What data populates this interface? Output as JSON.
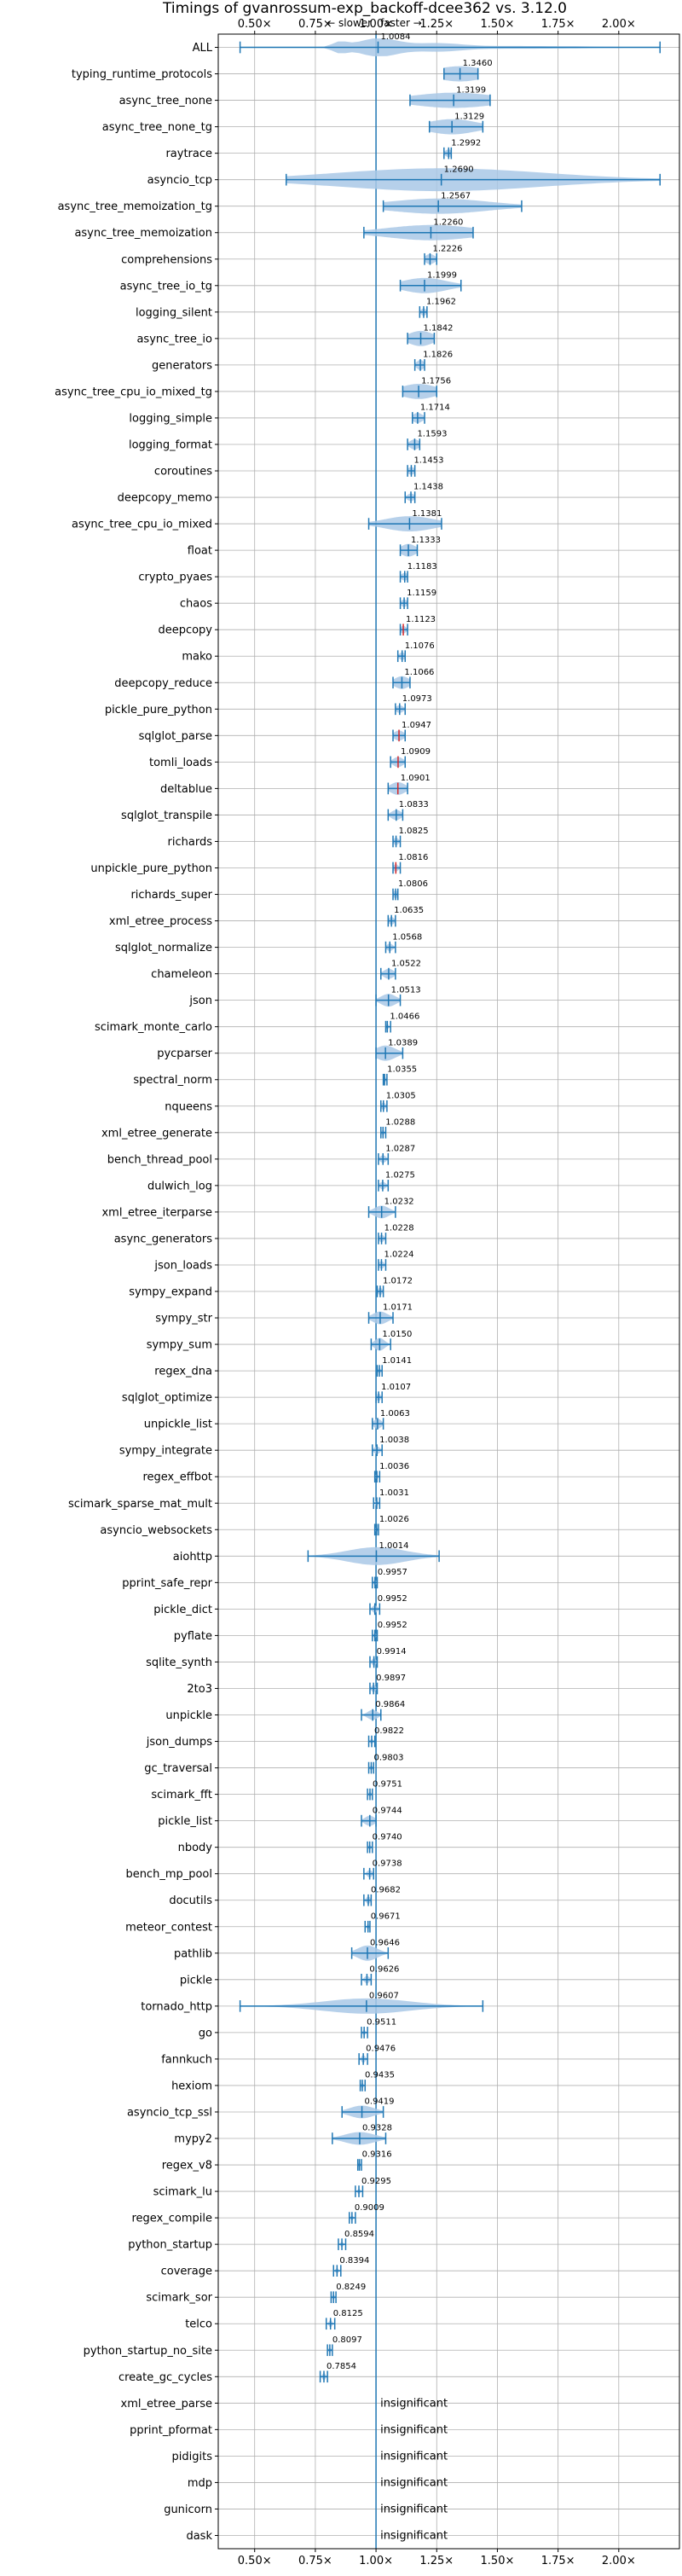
{
  "chart_data": {
    "type": "violin",
    "title": "Timings of gvanrossum-exp_backoff-dcee362 vs. 3.12.0",
    "annotation_slower": "← slower",
    "annotation_faster": "faster →",
    "reference_line": 1.0,
    "xlim": [
      0.35,
      2.25
    ],
    "xticks": [
      0.5,
      0.75,
      1.0,
      1.25,
      1.5,
      1.75,
      2.0
    ],
    "xtick_labels": [
      "0.50×",
      "0.75×",
      "1.00×",
      "1.25×",
      "1.50×",
      "1.75×",
      "2.00×"
    ],
    "grid": true,
    "insignificant_label": "insignificant",
    "colors": {
      "violin": "#a9c8e6",
      "line": "#1f77b4",
      "grid": "#b0b0b0",
      "median_red": "#d62728"
    },
    "benchmarks": [
      {
        "name": "ALL",
        "value": 1.0084,
        "label": "1.0084",
        "min": 0.44,
        "max": 2.17,
        "spread": 0.2,
        "width": 0.7,
        "multi": true
      },
      {
        "name": "typing_runtime_protocols",
        "value": 1.346,
        "label": "1.3460",
        "min": 1.28,
        "max": 1.42,
        "spread": 0.1,
        "width": 0.6
      },
      {
        "name": "async_tree_none",
        "value": 1.3199,
        "label": "1.3199",
        "min": 1.14,
        "max": 1.47,
        "spread": 0.17,
        "width": 0.6
      },
      {
        "name": "async_tree_none_tg",
        "value": 1.3129,
        "label": "1.3129",
        "min": 1.22,
        "max": 1.44,
        "spread": 0.1,
        "width": 0.6
      },
      {
        "name": "raytrace",
        "value": 1.2992,
        "label": "1.2992",
        "min": 1.28,
        "max": 1.31,
        "spread": 0.015,
        "width": 0.3
      },
      {
        "name": "asyncio_tcp",
        "value": 1.269,
        "label": "1.2690",
        "min": 0.63,
        "max": 2.17,
        "spread": 0.42,
        "width": 0.9
      },
      {
        "name": "async_tree_memoization_tg",
        "value": 1.2567,
        "label": "1.2567",
        "min": 1.03,
        "max": 1.6,
        "spread": 0.2,
        "width": 0.6
      },
      {
        "name": "async_tree_memoization",
        "value": 1.226,
        "label": "1.2260",
        "min": 0.95,
        "max": 1.4,
        "spread": 0.18,
        "width": 0.6
      },
      {
        "name": "comprehensions",
        "value": 1.2226,
        "label": "1.2226",
        "min": 1.2,
        "max": 1.25,
        "spread": 0.02,
        "width": 0.4
      },
      {
        "name": "async_tree_io_tg",
        "value": 1.1999,
        "label": "1.1999",
        "min": 1.1,
        "max": 1.35,
        "spread": 0.09,
        "width": 0.6
      },
      {
        "name": "logging_silent",
        "value": 1.1962,
        "label": "1.1962",
        "min": 1.18,
        "max": 1.21,
        "spread": 0.01,
        "width": 0.3
      },
      {
        "name": "async_tree_io",
        "value": 1.1842,
        "label": "1.1842",
        "min": 1.13,
        "max": 1.24,
        "spread": 0.05,
        "width": 0.6
      },
      {
        "name": "generators",
        "value": 1.1826,
        "label": "1.1826",
        "min": 1.16,
        "max": 1.2,
        "spread": 0.015,
        "width": 0.4
      },
      {
        "name": "async_tree_cpu_io_mixed_tg",
        "value": 1.1756,
        "label": "1.1756",
        "min": 1.11,
        "max": 1.25,
        "spread": 0.07,
        "width": 0.6
      },
      {
        "name": "logging_simple",
        "value": 1.1714,
        "label": "1.1714",
        "min": 1.15,
        "max": 1.2,
        "spread": 0.02,
        "width": 0.4
      },
      {
        "name": "logging_format",
        "value": 1.1593,
        "label": "1.1593",
        "min": 1.13,
        "max": 1.18,
        "spread": 0.02,
        "width": 0.4
      },
      {
        "name": "coroutines",
        "value": 1.1453,
        "label": "1.1453",
        "min": 1.13,
        "max": 1.16,
        "spread": 0.015,
        "width": 0.3
      },
      {
        "name": "deepcopy_memo",
        "value": 1.1438,
        "label": "1.1438",
        "min": 1.12,
        "max": 1.16,
        "spread": 0.015,
        "width": 0.3
      },
      {
        "name": "async_tree_cpu_io_mixed",
        "value": 1.1381,
        "label": "1.1381",
        "min": 0.97,
        "max": 1.27,
        "spread": 0.1,
        "width": 0.6
      },
      {
        "name": "float",
        "value": 1.1333,
        "label": "1.1333",
        "min": 1.1,
        "max": 1.17,
        "spread": 0.03,
        "width": 0.5
      },
      {
        "name": "crypto_pyaes",
        "value": 1.1183,
        "label": "1.1183",
        "min": 1.1,
        "max": 1.13,
        "spread": 0.015,
        "width": 0.3
      },
      {
        "name": "chaos",
        "value": 1.1159,
        "label": "1.1159",
        "min": 1.1,
        "max": 1.13,
        "spread": 0.012,
        "width": 0.3
      },
      {
        "name": "deepcopy",
        "value": 1.1123,
        "label": "1.1123",
        "min": 1.1,
        "max": 1.13,
        "spread": 0.012,
        "width": 0.3,
        "red": true
      },
      {
        "name": "mako",
        "value": 1.1076,
        "label": "1.1076",
        "min": 1.09,
        "max": 1.12,
        "spread": 0.012,
        "width": 0.3
      },
      {
        "name": "deepcopy_reduce",
        "value": 1.1066,
        "label": "1.1066",
        "min": 1.07,
        "max": 1.14,
        "spread": 0.03,
        "width": 0.5
      },
      {
        "name": "pickle_pure_python",
        "value": 1.0973,
        "label": "1.0973",
        "min": 1.08,
        "max": 1.12,
        "spread": 0.015,
        "width": 0.3
      },
      {
        "name": "sqlglot_parse",
        "value": 1.0947,
        "label": "1.0947",
        "min": 1.07,
        "max": 1.12,
        "spread": 0.02,
        "width": 0.4,
        "red": true
      },
      {
        "name": "tomli_loads",
        "value": 1.0909,
        "label": "1.0909",
        "min": 1.06,
        "max": 1.12,
        "spread": 0.02,
        "width": 0.4,
        "red": true
      },
      {
        "name": "deltablue",
        "value": 1.0901,
        "label": "1.0901",
        "min": 1.05,
        "max": 1.13,
        "spread": 0.03,
        "width": 0.5,
        "red": true
      },
      {
        "name": "sqlglot_transpile",
        "value": 1.0833,
        "label": "1.0833",
        "min": 1.05,
        "max": 1.11,
        "spread": 0.02,
        "width": 0.4
      },
      {
        "name": "richards",
        "value": 1.0825,
        "label": "1.0825",
        "min": 1.07,
        "max": 1.1,
        "spread": 0.01,
        "width": 0.3
      },
      {
        "name": "unpickle_pure_python",
        "value": 1.0816,
        "label": "1.0816",
        "min": 1.07,
        "max": 1.1,
        "spread": 0.01,
        "width": 0.3,
        "red": true
      },
      {
        "name": "richards_super",
        "value": 1.0806,
        "label": "1.0806",
        "min": 1.07,
        "max": 1.09,
        "spread": 0.01,
        "width": 0.3
      },
      {
        "name": "xml_etree_process",
        "value": 1.0635,
        "label": "1.0635",
        "min": 1.05,
        "max": 1.08,
        "spread": 0.012,
        "width": 0.3
      },
      {
        "name": "sqlglot_normalize",
        "value": 1.0568,
        "label": "1.0568",
        "min": 1.04,
        "max": 1.08,
        "spread": 0.012,
        "width": 0.3
      },
      {
        "name": "chameleon",
        "value": 1.0522,
        "label": "1.0522",
        "min": 1.02,
        "max": 1.08,
        "spread": 0.02,
        "width": 0.4
      },
      {
        "name": "json",
        "value": 1.0513,
        "label": "1.0513",
        "min": 1.0,
        "max": 1.1,
        "spread": 0.03,
        "width": 0.5
      },
      {
        "name": "scimark_monte_carlo",
        "value": 1.0466,
        "label": "1.0466",
        "min": 1.04,
        "max": 1.06,
        "spread": 0.006,
        "width": 0.2
      },
      {
        "name": "pycparser",
        "value": 1.0389,
        "label": "1.0389",
        "min": 1.0,
        "max": 1.11,
        "spread": 0.04,
        "width": 0.6
      },
      {
        "name": "spectral_norm",
        "value": 1.0355,
        "label": "1.0355",
        "min": 1.03,
        "max": 1.045,
        "spread": 0.006,
        "width": 0.2
      },
      {
        "name": "nqueens",
        "value": 1.0305,
        "label": "1.0305",
        "min": 1.02,
        "max": 1.045,
        "spread": 0.008,
        "width": 0.3
      },
      {
        "name": "xml_etree_generate",
        "value": 1.0288,
        "label": "1.0288",
        "min": 1.02,
        "max": 1.04,
        "spread": 0.006,
        "width": 0.2
      },
      {
        "name": "bench_thread_pool",
        "value": 1.0287,
        "label": "1.0287",
        "min": 1.01,
        "max": 1.05,
        "spread": 0.012,
        "width": 0.3
      },
      {
        "name": "dulwich_log",
        "value": 1.0275,
        "label": "1.0275",
        "min": 1.01,
        "max": 1.05,
        "spread": 0.012,
        "width": 0.3
      },
      {
        "name": "xml_etree_iterparse",
        "value": 1.0232,
        "label": "1.0232",
        "min": 0.97,
        "max": 1.08,
        "spread": 0.03,
        "width": 0.5
      },
      {
        "name": "async_generators",
        "value": 1.0228,
        "label": "1.0228",
        "min": 1.01,
        "max": 1.04,
        "spread": 0.01,
        "width": 0.3
      },
      {
        "name": "json_loads",
        "value": 1.0224,
        "label": "1.0224",
        "min": 1.01,
        "max": 1.04,
        "spread": 0.01,
        "width": 0.3
      },
      {
        "name": "sympy_expand",
        "value": 1.0172,
        "label": "1.0172",
        "min": 1.005,
        "max": 1.03,
        "spread": 0.008,
        "width": 0.3
      },
      {
        "name": "sympy_str",
        "value": 1.0171,
        "label": "1.0171",
        "min": 0.97,
        "max": 1.07,
        "spread": 0.03,
        "width": 0.5
      },
      {
        "name": "sympy_sum",
        "value": 1.015,
        "label": "1.0150",
        "min": 0.98,
        "max": 1.06,
        "spread": 0.02,
        "width": 0.5
      },
      {
        "name": "regex_dna",
        "value": 1.0141,
        "label": "1.0141",
        "min": 1.005,
        "max": 1.025,
        "spread": 0.006,
        "width": 0.2
      },
      {
        "name": "sqlglot_optimize",
        "value": 1.0107,
        "label": "1.0107",
        "min": 1.0,
        "max": 1.025,
        "spread": 0.008,
        "width": 0.3
      },
      {
        "name": "unpickle_list",
        "value": 1.0063,
        "label": "1.0063",
        "min": 0.985,
        "max": 1.03,
        "spread": 0.015,
        "width": 0.4
      },
      {
        "name": "sympy_integrate",
        "value": 1.0038,
        "label": "1.0038",
        "min": 0.985,
        "max": 1.025,
        "spread": 0.012,
        "width": 0.3
      },
      {
        "name": "regex_effbot",
        "value": 1.0036,
        "label": "1.0036",
        "min": 0.995,
        "max": 1.015,
        "spread": 0.005,
        "width": 0.2
      },
      {
        "name": "scimark_sparse_mat_mult",
        "value": 1.0031,
        "label": "1.0031",
        "min": 0.99,
        "max": 1.015,
        "spread": 0.006,
        "width": 0.2
      },
      {
        "name": "asyncio_websockets",
        "value": 1.0026,
        "label": "1.0026",
        "min": 0.995,
        "max": 1.01,
        "spread": 0.004,
        "width": 0.2
      },
      {
        "name": "aiohttp",
        "value": 1.0014,
        "label": "1.0014",
        "min": 0.72,
        "max": 1.26,
        "spread": 0.12,
        "width": 0.7
      },
      {
        "name": "pprint_safe_repr",
        "value": 0.9957,
        "label": "0.9957",
        "min": 0.985,
        "max": 1.005,
        "spread": 0.006,
        "width": 0.2
      },
      {
        "name": "pickle_dict",
        "value": 0.9952,
        "label": "0.9952",
        "min": 0.975,
        "max": 1.015,
        "spread": 0.01,
        "width": 0.3
      },
      {
        "name": "pyflate",
        "value": 0.9952,
        "label": "0.9952",
        "min": 0.985,
        "max": 1.005,
        "spread": 0.005,
        "width": 0.2
      },
      {
        "name": "sqlite_synth",
        "value": 0.9914,
        "label": "0.9914",
        "min": 0.975,
        "max": 1.005,
        "spread": 0.008,
        "width": 0.3
      },
      {
        "name": "2to3",
        "value": 0.9897,
        "label": "0.9897",
        "min": 0.975,
        "max": 1.005,
        "spread": 0.008,
        "width": 0.3
      },
      {
        "name": "unpickle",
        "value": 0.9864,
        "label": "0.9864",
        "min": 0.94,
        "max": 1.02,
        "spread": 0.02,
        "width": 0.4
      },
      {
        "name": "json_dumps",
        "value": 0.9822,
        "label": "0.9822",
        "min": 0.97,
        "max": 0.995,
        "spread": 0.006,
        "width": 0.2
      },
      {
        "name": "gc_traversal",
        "value": 0.9803,
        "label": "0.9803",
        "min": 0.97,
        "max": 0.99,
        "spread": 0.005,
        "width": 0.2
      },
      {
        "name": "scimark_fft",
        "value": 0.9751,
        "label": "0.9751",
        "min": 0.965,
        "max": 0.985,
        "spread": 0.005,
        "width": 0.2
      },
      {
        "name": "pickle_list",
        "value": 0.9744,
        "label": "0.9744",
        "min": 0.94,
        "max": 1.0,
        "spread": 0.02,
        "width": 0.4
      },
      {
        "name": "nbody",
        "value": 0.974,
        "label": "0.9740",
        "min": 0.965,
        "max": 0.985,
        "spread": 0.005,
        "width": 0.2
      },
      {
        "name": "bench_mp_pool",
        "value": 0.9738,
        "label": "0.9738",
        "min": 0.95,
        "max": 0.99,
        "spread": 0.01,
        "width": 0.3
      },
      {
        "name": "docutils",
        "value": 0.9682,
        "label": "0.9682",
        "min": 0.95,
        "max": 0.98,
        "spread": 0.008,
        "width": 0.3
      },
      {
        "name": "meteor_contest",
        "value": 0.9671,
        "label": "0.9671",
        "min": 0.955,
        "max": 0.975,
        "spread": 0.005,
        "width": 0.2
      },
      {
        "name": "pathlib",
        "value": 0.9646,
        "label": "0.9646",
        "min": 0.9,
        "max": 1.05,
        "spread": 0.04,
        "width": 0.6
      },
      {
        "name": "pickle",
        "value": 0.9626,
        "label": "0.9626",
        "min": 0.94,
        "max": 0.98,
        "spread": 0.01,
        "width": 0.3
      },
      {
        "name": "tornado_http",
        "value": 0.9607,
        "label": "0.9607",
        "min": 0.44,
        "max": 1.44,
        "spread": 0.18,
        "width": 0.6
      },
      {
        "name": "go",
        "value": 0.9511,
        "label": "0.9511",
        "min": 0.94,
        "max": 0.965,
        "spread": 0.006,
        "width": 0.2
      },
      {
        "name": "fannkuch",
        "value": 0.9476,
        "label": "0.9476",
        "min": 0.93,
        "max": 0.965,
        "spread": 0.008,
        "width": 0.3
      },
      {
        "name": "hexiom",
        "value": 0.9435,
        "label": "0.9435",
        "min": 0.935,
        "max": 0.955,
        "spread": 0.005,
        "width": 0.2
      },
      {
        "name": "asyncio_tcp_ssl",
        "value": 0.9419,
        "label": "0.9419",
        "min": 0.86,
        "max": 1.03,
        "spread": 0.05,
        "width": 0.5
      },
      {
        "name": "mypy2",
        "value": 0.9328,
        "label": "0.9328",
        "min": 0.82,
        "max": 1.04,
        "spread": 0.06,
        "width": 0.5
      },
      {
        "name": "regex_v8",
        "value": 0.9316,
        "label": "0.9316",
        "min": 0.925,
        "max": 0.94,
        "spread": 0.004,
        "width": 0.2
      },
      {
        "name": "scimark_lu",
        "value": 0.9295,
        "label": "0.9295",
        "min": 0.915,
        "max": 0.945,
        "spread": 0.006,
        "width": 0.2
      },
      {
        "name": "regex_compile",
        "value": 0.9009,
        "label": "0.9009",
        "min": 0.89,
        "max": 0.915,
        "spread": 0.005,
        "width": 0.2
      },
      {
        "name": "python_startup",
        "value": 0.8594,
        "label": "0.8594",
        "min": 0.845,
        "max": 0.875,
        "spread": 0.006,
        "width": 0.2
      },
      {
        "name": "coverage",
        "value": 0.8394,
        "label": "0.8394",
        "min": 0.825,
        "max": 0.855,
        "spread": 0.006,
        "width": 0.2
      },
      {
        "name": "scimark_sor",
        "value": 0.8249,
        "label": "0.8249",
        "min": 0.815,
        "max": 0.835,
        "spread": 0.005,
        "width": 0.2
      },
      {
        "name": "telco",
        "value": 0.8125,
        "label": "0.8125",
        "min": 0.795,
        "max": 0.83,
        "spread": 0.006,
        "width": 0.3
      },
      {
        "name": "python_startup_no_site",
        "value": 0.8097,
        "label": "0.8097",
        "min": 0.8,
        "max": 0.82,
        "spread": 0.005,
        "width": 0.2
      },
      {
        "name": "create_gc_cycles",
        "value": 0.7854,
        "label": "0.7854",
        "min": 0.77,
        "max": 0.8,
        "spread": 0.006,
        "width": 0.3
      },
      {
        "name": "xml_etree_parse",
        "insignificant": true
      },
      {
        "name": "pprint_pformat",
        "insignificant": true
      },
      {
        "name": "pidigits",
        "insignificant": true
      },
      {
        "name": "mdp",
        "insignificant": true
      },
      {
        "name": "gunicorn",
        "insignificant": true
      },
      {
        "name": "dask",
        "insignificant": true
      }
    ]
  }
}
